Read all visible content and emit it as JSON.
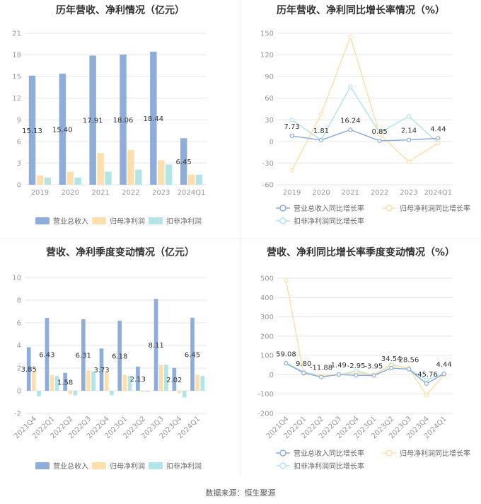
{
  "colors": {
    "revenue": "#8eadd9",
    "net_profit": "#fddfae",
    "deducted_profit": "#b4e5e6",
    "grid": "#e6e6e6",
    "axis_text": "#999999",
    "label_text": "#333333"
  },
  "footer": "数据来源：恒生聚源",
  "chart_data": [
    {
      "type": "bar",
      "title": "历年营收、净利情况（亿元）",
      "categories": [
        "2019",
        "2020",
        "2021",
        "2022",
        "2023",
        "2024Q1"
      ],
      "ylim": [
        0,
        21
      ],
      "yticks": [
        0,
        3,
        6,
        9,
        12,
        15,
        18,
        21
      ],
      "legend_position": "bottom",
      "series": [
        {
          "name": "营业总收入",
          "values": [
            15.13,
            15.4,
            17.91,
            18.06,
            18.44,
            6.45
          ],
          "labels": [
            "15.13",
            "15.40",
            "17.91",
            "18.06",
            "18.44",
            "6.45"
          ]
        },
        {
          "name": "归母净利润",
          "values": [
            1.3,
            1.8,
            4.4,
            4.8,
            3.4,
            1.4
          ]
        },
        {
          "name": "扣非净利润",
          "values": [
            1.0,
            1.0,
            1.8,
            2.1,
            2.8,
            1.4
          ]
        }
      ]
    },
    {
      "type": "line",
      "title": "历年营收、净利同比增长率情况（%）",
      "categories": [
        "2019",
        "2020",
        "2021",
        "2022",
        "2023",
        "2024Q1"
      ],
      "ylim": [
        -60,
        150
      ],
      "yticks": [
        -60,
        -30,
        0,
        30,
        60,
        90,
        120,
        150
      ],
      "legend_position": "bottom",
      "series": [
        {
          "name": "营业总收入同比增长率",
          "values": [
            7.73,
            1.81,
            16.24,
            0.85,
            2.14,
            4.44
          ],
          "labels": [
            "7.73",
            "1.81",
            "16.24",
            "0.85",
            "2.14",
            "4.44"
          ]
        },
        {
          "name": "归母净利润同比增长率",
          "values": [
            -40,
            38,
            145,
            10,
            -28,
            -2
          ]
        },
        {
          "name": "扣非净利润同比增长率",
          "values": [
            30,
            2,
            76,
            12,
            35,
            -2
          ]
        }
      ]
    },
    {
      "type": "bar",
      "title": "营收、净利季度变动情况（亿元）",
      "categories": [
        "2021Q4",
        "2022Q1",
        "2022Q2",
        "2022Q3",
        "2022Q4",
        "2023Q1",
        "2023Q2",
        "2023Q3",
        "2023Q4",
        "2024Q1"
      ],
      "ylim": [
        -2,
        10
      ],
      "yticks": [
        -2,
        0,
        2,
        4,
        6,
        8,
        10
      ],
      "legend_position": "bottom",
      "series": [
        {
          "name": "营业总收入",
          "values": [
            3.85,
            6.43,
            1.58,
            6.31,
            3.73,
            6.18,
            2.13,
            8.11,
            2.02,
            6.45
          ],
          "labels": [
            "3.85",
            "6.43",
            "1.58",
            "6.31",
            "3.73",
            "6.18",
            "2.13",
            "8.11",
            "2.02",
            "6.45"
          ]
        },
        {
          "name": "归母净利润",
          "values": [
            1.7,
            1.4,
            -0.3,
            1.8,
            1.6,
            1.4,
            -0.1,
            2.3,
            -0.2,
            1.4
          ]
        },
        {
          "name": "扣非净利润",
          "values": [
            -0.5,
            1.3,
            -0.4,
            1.7,
            -0.4,
            1.3,
            -0.1,
            2.3,
            -0.6,
            1.3
          ]
        }
      ]
    },
    {
      "type": "line",
      "title": "营收、净利同比增长率季度变动情况（%）",
      "categories": [
        "2021Q4",
        "2022Q1",
        "2022Q2",
        "2022Q3",
        "2022Q4",
        "2023Q1",
        "2023Q2",
        "2023Q3",
        "2023Q4",
        "2024Q1"
      ],
      "ylim": [
        -200,
        500
      ],
      "yticks": [
        -200,
        -100,
        0,
        100,
        200,
        300,
        400,
        500
      ],
      "legend_position": "bottom",
      "series": [
        {
          "name": "营业总收入同比增长率",
          "values": [
            59.08,
            9.8,
            -11.88,
            1.49,
            -2.95,
            -3.95,
            34.54,
            28.56,
            -45.76,
            4.44
          ],
          "labels": [
            "59.08",
            "9.80",
            "-11.88",
            "1.49",
            "-2.95",
            "-3.95",
            "34.54",
            "28.56",
            "-45.76",
            "4.44"
          ]
        },
        {
          "name": "归母净利润同比增长率",
          "values": [
            490,
            5,
            -5,
            2,
            10,
            0,
            50,
            35,
            -105,
            0
          ]
        },
        {
          "name": "扣非净利润同比增长率",
          "values": [
            60,
            15,
            -5,
            0,
            20,
            -2,
            55,
            30,
            -25,
            5
          ]
        }
      ]
    }
  ]
}
